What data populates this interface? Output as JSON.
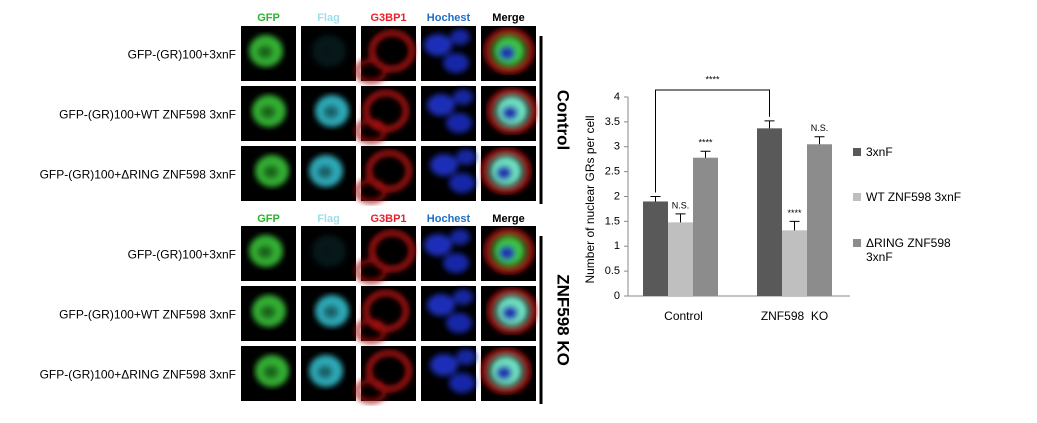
{
  "figure": {
    "channels": [
      "GFP",
      "Flag",
      "G3BP1",
      "Hochest",
      "Merge"
    ],
    "groups": [
      {
        "label": "Control",
        "rows": [
          "GFP-(GR)100+3xnF",
          "GFP-(GR)100+WT ZNF598 3xnF",
          "GFP-(GR)100+ΔRING ZNF598 3xnF"
        ]
      },
      {
        "label": "ZNF598 KO",
        "rows": [
          "GFP-(GR)100+3xnF",
          "GFP-(GR)100+WT ZNF598 3xnF",
          "GFP-(GR)100+ΔRING ZNF598 3xnF"
        ]
      }
    ]
  },
  "chart_data": {
    "type": "bar",
    "y_label": "Number of nuclear GRs per cell",
    "categories": [
      "Control",
      "ZNF598  KO"
    ],
    "series": [
      {
        "name": "3xnF",
        "color": "#595959",
        "values": [
          1.9,
          3.37
        ],
        "errors": [
          0.1,
          0.15
        ]
      },
      {
        "name": "WT ZNF598 3xnF",
        "color": "#bfbfbf",
        "values": [
          1.48,
          1.32
        ],
        "errors": [
          0.17,
          0.18
        ]
      },
      {
        "name": "ΔRING ZNF598 3xnF",
        "color": "#8c8c8c",
        "values": [
          2.78,
          3.05
        ],
        "errors": [
          0.13,
          0.15
        ]
      }
    ],
    "significance": [
      {
        "text": "N.S.",
        "series": 1,
        "index": 0
      },
      {
        "text": "****",
        "series": 2,
        "index": 0
      },
      {
        "text": "****",
        "series": 1,
        "index": 1
      },
      {
        "text": "N.S.",
        "series": 2,
        "index": 1
      }
    ],
    "comparison": {
      "text": "****",
      "series": 0,
      "indices": [
        0,
        1
      ]
    },
    "ylim": [
      0,
      4
    ],
    "yticks": [
      0,
      0.5,
      1,
      1.5,
      2,
      2.5,
      3,
      3.5,
      4
    ]
  }
}
